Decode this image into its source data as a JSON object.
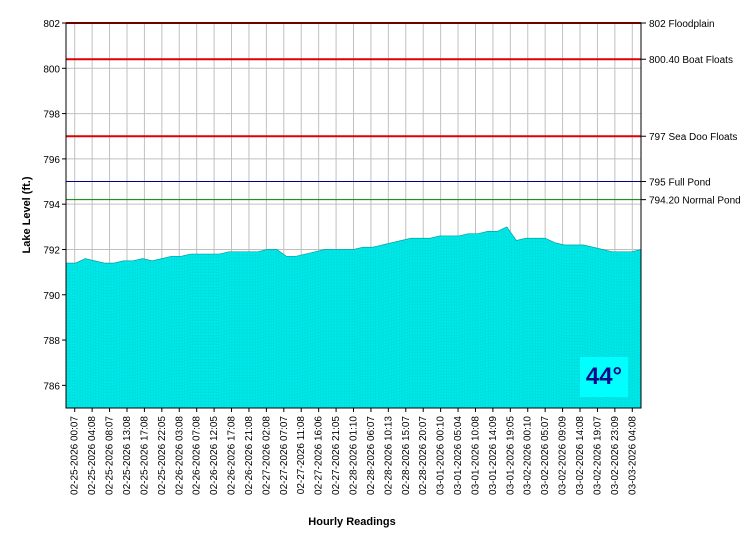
{
  "chart_data": {
    "type": "area",
    "xlabel": "Hourly Readings",
    "ylabel": "Lake Level (ft.)",
    "ylim": [
      785,
      802
    ],
    "yticks": [
      786,
      788,
      790,
      792,
      794,
      796,
      798,
      800,
      802
    ],
    "grid": true,
    "fill_color": "#00e5e5",
    "x_tick_labels": [
      "02-25-2026 00:07",
      "02-25-2026 04:08",
      "02-25-2026 08:07",
      "02-25-2026 13:08",
      "02-25-2026 17:08",
      "02-25-2026 22:05",
      "02-26-2026 03:08",
      "02-26-2026 07:08",
      "02-26-2026 12:05",
      "02-26-2026 17:08",
      "02-26-2026 21:08",
      "02-27-2026 02:08",
      "02-27-2026 07:07",
      "02-27-2026 11:08",
      "02-27-2026 16:06",
      "02-27-2026 21:05",
      "02-28-2026 01:10",
      "02-28-2026 06:07",
      "02-28-2026 10:13",
      "02-28-2026 15:07",
      "02-28-2026 20:07",
      "03-01-2026 00:10",
      "03-01-2026 05:04",
      "03-01-2026 10:08",
      "03-01-2026 14:09",
      "03-01-2026 19:05",
      "03-02-2026 00:10",
      "03-02-2026 05:07",
      "03-02-2026 09:09",
      "03-02-2026 14:08",
      "03-02-2026 19:07",
      "03-02-2026 23:09",
      "03-03-2026 04:08"
    ],
    "values": [
      791.4,
      791.4,
      791.6,
      791.5,
      791.4,
      791.4,
      791.5,
      791.5,
      791.6,
      791.5,
      791.6,
      791.7,
      791.7,
      791.8,
      791.8,
      791.8,
      791.8,
      791.9,
      791.9,
      791.9,
      791.9,
      792.0,
      792.0,
      791.7,
      791.7,
      791.8,
      791.9,
      792.0,
      792.0,
      792.0,
      792.0,
      792.1,
      792.1,
      792.2,
      792.3,
      792.4,
      792.5,
      792.5,
      792.5,
      792.6,
      792.6,
      792.6,
      792.7,
      792.7,
      792.8,
      792.8,
      793.0,
      792.4,
      792.5,
      792.5,
      792.5,
      792.3,
      792.2,
      792.2,
      792.2,
      792.1,
      792.0,
      791.9,
      791.9,
      791.9,
      792.0
    ],
    "reference_lines": [
      {
        "value": 802,
        "label": "802 Floodplain",
        "color": "#e00000"
      },
      {
        "value": 800.4,
        "label": "800.40 Boat Floats",
        "color": "#e00000"
      },
      {
        "value": 797,
        "label": "797 Sea Doo Floats",
        "color": "#e00000"
      },
      {
        "value": 795,
        "label": "795 Full Pond",
        "color": "#000080"
      },
      {
        "value": 794.2,
        "label": "794.20 Normal Pond",
        "color": "#008000"
      }
    ]
  },
  "temperature_badge": "44°"
}
